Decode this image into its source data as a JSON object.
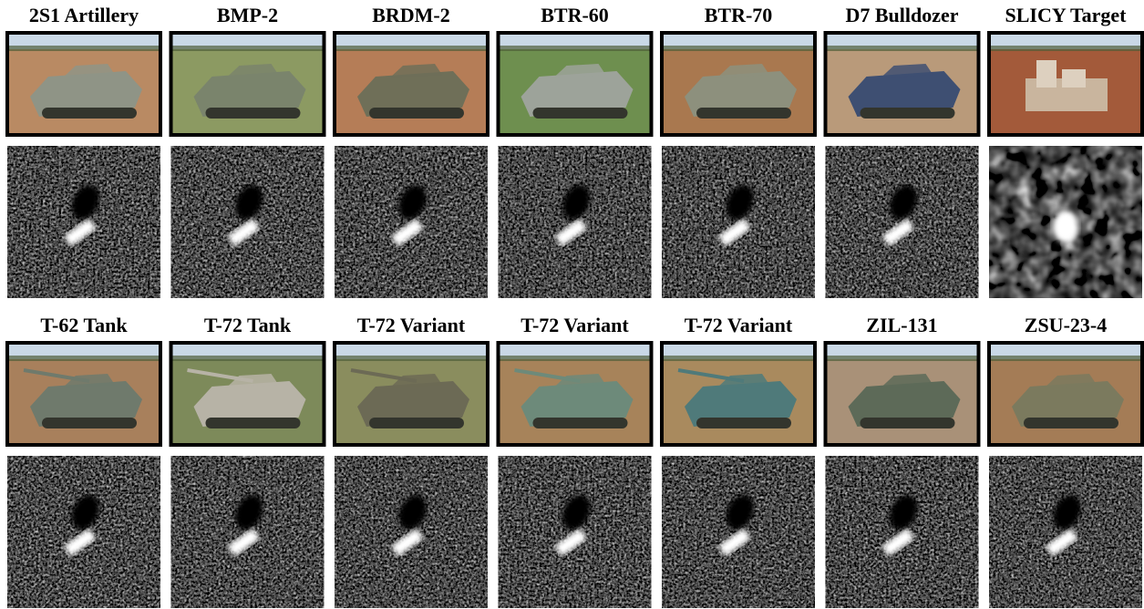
{
  "labels": [
    "2S1 Artillery",
    "BMP-2",
    "BRDM-2",
    "BTR-60",
    "BTR-70",
    "D7 Bulldozer",
    "SLICY Target",
    "T-62 Tank",
    "T-72 Tank",
    "T-72 Variant",
    "T-72 Variant",
    "T-72 Variant",
    "ZIL-131",
    "ZSU-23-4"
  ]
}
